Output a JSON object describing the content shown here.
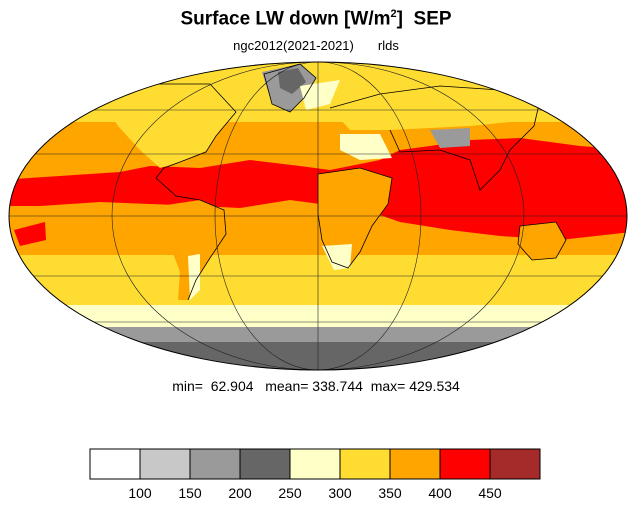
{
  "title": {
    "main": "Surface LW down [W/m",
    "superscript": "2",
    "close": "]",
    "month": "SEP"
  },
  "subtitle": {
    "run": "ngc2012(2021-2021)",
    "variable": "rlds"
  },
  "stats": {
    "min_label": "min=",
    "min_value": "62.904",
    "mean_label": "mean=",
    "mean_value": "338.744",
    "max_label": "max=",
    "max_value": "429.534"
  },
  "map": {
    "projection": "Mollweide",
    "graticule": true,
    "coastlines": true
  },
  "colorbar": {
    "tick_labels": [
      "100",
      "150",
      "200",
      "250",
      "300",
      "350",
      "400",
      "450"
    ],
    "colors": [
      "#ffffff",
      "#c8c8c8",
      "#9a9a9a",
      "#666666",
      "#ffffc8",
      "#ffdc32",
      "#ffa500",
      "#ff0000",
      "#a52a2a"
    ]
  }
}
